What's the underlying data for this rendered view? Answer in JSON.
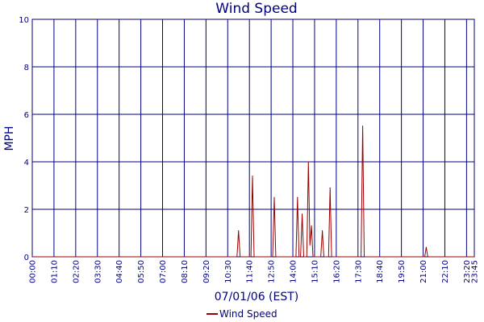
{
  "chart_data": {
    "type": "line",
    "title": "Wind Speed",
    "xlabel": "07/01/06 (EST)",
    "ylabel": "MPH",
    "x_unit": "time of day (HH:MM, EST)",
    "xlim": [
      "00:00",
      "23:45"
    ],
    "ylim": [
      0,
      10
    ],
    "y_ticks": [
      0,
      2,
      4,
      6,
      8,
      10
    ],
    "x_ticks": [
      "00:00",
      "01:10",
      "02:20",
      "03:30",
      "04:40",
      "05:50",
      "07:00",
      "08:10",
      "09:20",
      "10:30",
      "11:40",
      "12:50",
      "14:00",
      "15:10",
      "16:20",
      "17:30",
      "18:40",
      "19:50",
      "21:00",
      "22:10",
      "23:20",
      "23:45"
    ],
    "grid": true,
    "legend": "bottom-center",
    "colors": {
      "series": "#990000",
      "grid": "#000080",
      "axis": "#000080",
      "text": "#000080"
    },
    "series": [
      {
        "name": "Wind Speed",
        "points": [
          [
            "00:00",
            0
          ],
          [
            "11:00",
            0
          ],
          [
            "11:05",
            1.1
          ],
          [
            "11:10",
            0
          ],
          [
            "11:45",
            0
          ],
          [
            "11:50",
            3.4
          ],
          [
            "11:55",
            0
          ],
          [
            "12:55",
            0
          ],
          [
            "13:00",
            2.5
          ],
          [
            "13:05",
            0
          ],
          [
            "14:10",
            0
          ],
          [
            "14:15",
            2.5
          ],
          [
            "14:20",
            0
          ],
          [
            "14:25",
            0
          ],
          [
            "14:30",
            1.8
          ],
          [
            "14:35",
            0
          ],
          [
            "14:45",
            0
          ],
          [
            "14:50",
            4.0
          ],
          [
            "14:55",
            0.5
          ],
          [
            "15:00",
            1.3
          ],
          [
            "15:05",
            0
          ],
          [
            "15:30",
            0
          ],
          [
            "15:35",
            1.1
          ],
          [
            "15:40",
            0
          ],
          [
            "15:55",
            0
          ],
          [
            "16:00",
            2.9
          ],
          [
            "16:05",
            0
          ],
          [
            "17:40",
            0
          ],
          [
            "17:45",
            5.5
          ],
          [
            "17:50",
            0
          ],
          [
            "21:05",
            0
          ],
          [
            "21:10",
            0.4
          ],
          [
            "21:15",
            0
          ],
          [
            "23:45",
            0
          ]
        ]
      }
    ]
  }
}
